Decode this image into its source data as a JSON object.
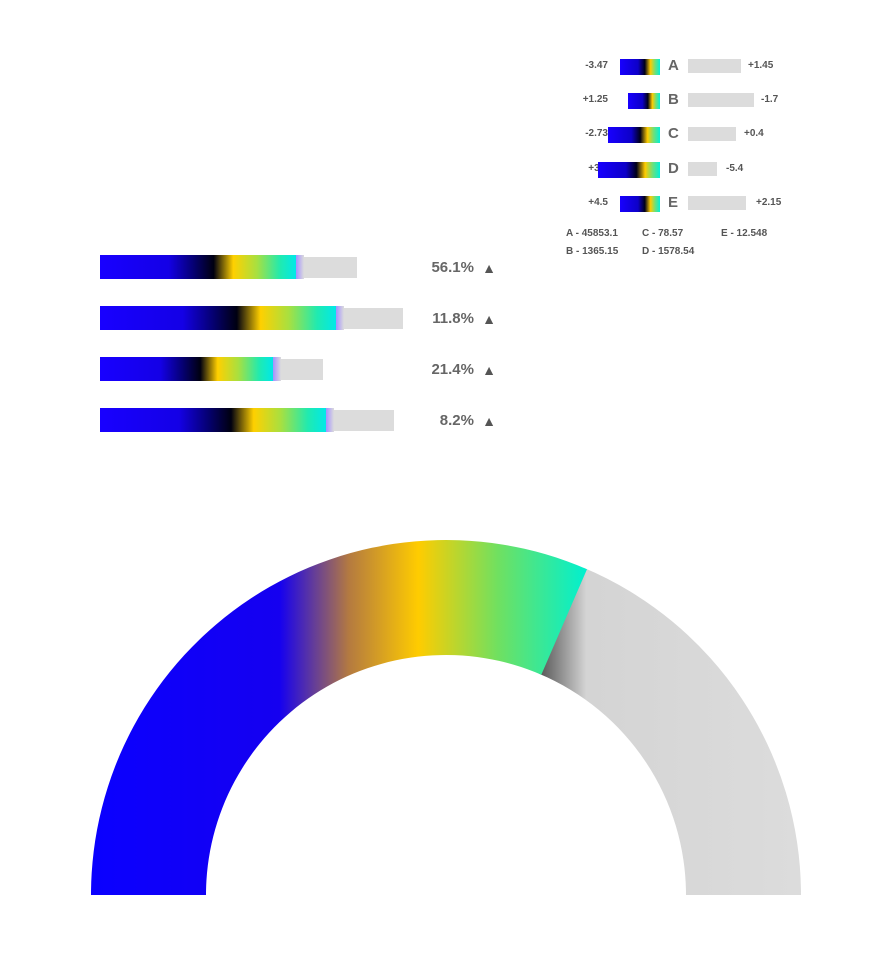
{
  "chart_data": [
    {
      "type": "bar",
      "orientation": "horizontal",
      "categories": [
        "A",
        "B",
        "C",
        "D",
        "E"
      ],
      "series": [
        {
          "values": [
            -3.47,
            1.25,
            -2.73,
            3.1,
            4.5
          ],
          "labels": [
            "-3.47",
            "+1.25",
            "-2.73",
            "+3.1",
            "+4.5"
          ]
        },
        {
          "values": [
            1.45,
            -1.7,
            0.4,
            -5.4,
            2.15
          ],
          "labels": [
            "+1.45",
            "-1.7",
            "+0.4",
            "-5.4",
            "+2.15"
          ]
        }
      ],
      "legend": [
        {
          "text": "A - 45853.1"
        },
        {
          "text": "C - 78.57"
        },
        {
          "text": "E - 12.548"
        },
        {
          "text": "B - 1365.15"
        },
        {
          "text": "D - 1578.54"
        }
      ]
    },
    {
      "type": "bar",
      "orientation": "horizontal",
      "values": [
        56.1,
        11.8,
        21.4,
        8.2
      ],
      "fill_fractions": [
        0.66,
        0.8,
        0.77,
        0.77
      ],
      "labels": [
        "56.1%",
        "11.8%",
        "21.4%",
        "8.2%"
      ],
      "trend": "▲"
    },
    {
      "type": "gauge",
      "value_fraction": 0.63
    }
  ],
  "colors": {
    "gradient": [
      "#1800ff",
      "#000010",
      "#ffd000",
      "#00f0d8"
    ],
    "track": "#dcdcdc",
    "text": "#666666"
  }
}
